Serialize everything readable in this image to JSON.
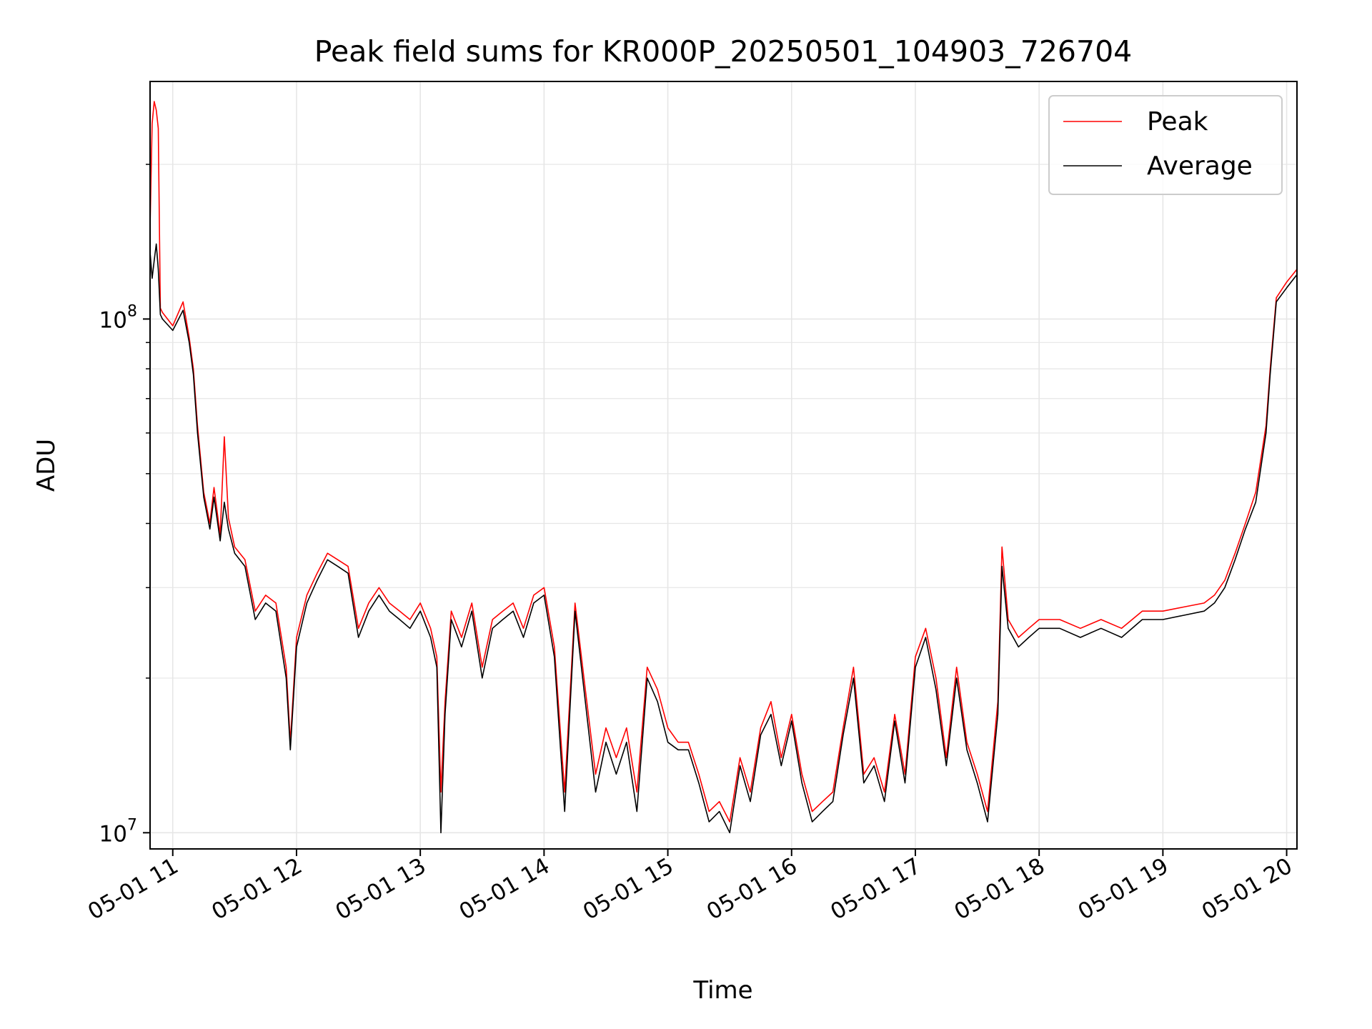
{
  "chart_data": {
    "type": "line",
    "title": "Peak field sums for KR000P_20250501_104903_726704",
    "xlabel": "Time",
    "ylabel": "ADU",
    "x_range": [
      "05-01 10:49",
      "05-01 20:05"
    ],
    "x_ticks": [
      "05-01 11",
      "05-01 12",
      "05-01 13",
      "05-01 14",
      "05-01 15",
      "05-01 16",
      "05-01 17",
      "05-01 18",
      "05-01 19",
      "05-01 20"
    ],
    "y_scale": "log",
    "ylim": [
      9300000,
      290000000
    ],
    "y_major_ticks": [
      {
        "value": 10000000,
        "mantissa": "10",
        "exponent": "7"
      },
      {
        "value": 100000000,
        "mantissa": "10",
        "exponent": "8"
      }
    ],
    "grid": true,
    "legend_position": "top-right",
    "colors": {
      "peak": "#ff0000",
      "average": "#000000"
    },
    "series": [
      {
        "name": "Peak",
        "color": "#ff0000",
        "x": [
          "05-01 10:49",
          "05-01 10:50",
          "05-01 10:51",
          "05-01 10:52",
          "05-01 10:53",
          "05-01 10:54",
          "05-01 10:55",
          "05-01 11:00",
          "05-01 11:05",
          "05-01 11:08",
          "05-01 11:10",
          "05-01 11:12",
          "05-01 11:15",
          "05-01 11:18",
          "05-01 11:20",
          "05-01 11:23",
          "05-01 11:25",
          "05-01 11:27",
          "05-01 11:30",
          "05-01 11:35",
          "05-01 11:40",
          "05-01 11:45",
          "05-01 11:50",
          "05-01 11:55",
          "05-01 11:57",
          "05-01 12:00",
          "05-01 12:05",
          "05-01 12:10",
          "05-01 12:15",
          "05-01 12:20",
          "05-01 12:25",
          "05-01 12:30",
          "05-01 12:35",
          "05-01 12:40",
          "05-01 12:45",
          "05-01 12:50",
          "05-01 12:55",
          "05-01 13:00",
          "05-01 13:05",
          "05-01 13:08",
          "05-01 13:10",
          "05-01 13:12",
          "05-01 13:15",
          "05-01 13:20",
          "05-01 13:25",
          "05-01 13:30",
          "05-01 13:35",
          "05-01 13:40",
          "05-01 13:45",
          "05-01 13:50",
          "05-01 13:55",
          "05-01 14:00",
          "05-01 14:05",
          "05-01 14:10",
          "05-01 14:15",
          "05-01 14:20",
          "05-01 14:25",
          "05-01 14:30",
          "05-01 14:35",
          "05-01 14:40",
          "05-01 14:45",
          "05-01 14:50",
          "05-01 14:55",
          "05-01 15:00",
          "05-01 15:05",
          "05-01 15:10",
          "05-01 15:15",
          "05-01 15:20",
          "05-01 15:25",
          "05-01 15:30",
          "05-01 15:35",
          "05-01 15:40",
          "05-01 15:45",
          "05-01 15:50",
          "05-01 15:55",
          "05-01 16:00",
          "05-01 16:05",
          "05-01 16:10",
          "05-01 16:15",
          "05-01 16:20",
          "05-01 16:25",
          "05-01 16:30",
          "05-01 16:35",
          "05-01 16:40",
          "05-01 16:45",
          "05-01 16:50",
          "05-01 16:55",
          "05-01 17:00",
          "05-01 17:05",
          "05-01 17:10",
          "05-01 17:15",
          "05-01 17:20",
          "05-01 17:25",
          "05-01 17:30",
          "05-01 17:35",
          "05-01 17:40",
          "05-01 17:42",
          "05-01 17:45",
          "05-01 17:50",
          "05-01 17:55",
          "05-01 18:00",
          "05-01 18:10",
          "05-01 18:20",
          "05-01 18:30",
          "05-01 18:40",
          "05-01 18:50",
          "05-01 19:00",
          "05-01 19:10",
          "05-01 19:20",
          "05-01 19:25",
          "05-01 19:30",
          "05-01 19:35",
          "05-01 19:40",
          "05-01 19:45",
          "05-01 19:48",
          "05-01 19:50",
          "05-01 19:52",
          "05-01 19:55",
          "05-01 20:00",
          "05-01 20:05"
        ],
        "values": [
          150000000,
          240000000,
          265000000,
          255000000,
          235000000,
          105000000,
          103000000,
          97000000,
          108000000,
          92000000,
          80000000,
          62000000,
          46000000,
          40000000,
          47000000,
          38000000,
          59000000,
          41000000,
          36000000,
          34000000,
          27000000,
          29000000,
          28000000,
          21000000,
          15000000,
          24000000,
          29000000,
          32000000,
          35000000,
          34000000,
          33000000,
          25000000,
          28000000,
          30000000,
          28000000,
          27000000,
          26000000,
          28000000,
          25000000,
          22000000,
          12000000,
          18000000,
          27000000,
          24000000,
          28000000,
          21000000,
          26000000,
          27000000,
          28000000,
          25000000,
          29000000,
          30000000,
          23000000,
          12000000,
          28000000,
          19000000,
          13000000,
          16000000,
          14000000,
          16000000,
          12000000,
          21000000,
          19000000,
          16000000,
          15000000,
          15000000,
          13000000,
          11000000,
          11500000,
          10500000,
          14000000,
          12000000,
          16000000,
          18000000,
          14000000,
          17000000,
          13000000,
          11000000,
          11500000,
          12000000,
          16000000,
          21000000,
          13000000,
          14000000,
          12000000,
          17000000,
          13000000,
          22000000,
          25000000,
          20000000,
          14000000,
          21000000,
          15000000,
          13000000,
          11000000,
          18000000,
          36000000,
          26000000,
          24000000,
          25000000,
          26000000,
          26000000,
          25000000,
          26000000,
          25000000,
          27000000,
          27000000,
          27500000,
          28000000,
          29000000,
          31000000,
          35000000,
          40000000,
          46000000,
          55000000,
          62000000,
          80000000,
          110000000,
          118000000,
          125000000
        ]
      },
      {
        "name": "Average",
        "color": "#000000",
        "x": [
          "05-01 10:49",
          "05-01 10:50",
          "05-01 10:51",
          "05-01 10:52",
          "05-01 10:53",
          "05-01 10:54",
          "05-01 10:55",
          "05-01 11:00",
          "05-01 11:05",
          "05-01 11:08",
          "05-01 11:10",
          "05-01 11:12",
          "05-01 11:15",
          "05-01 11:18",
          "05-01 11:20",
          "05-01 11:23",
          "05-01 11:25",
          "05-01 11:27",
          "05-01 11:30",
          "05-01 11:35",
          "05-01 11:40",
          "05-01 11:45",
          "05-01 11:50",
          "05-01 11:55",
          "05-01 11:57",
          "05-01 12:00",
          "05-01 12:05",
          "05-01 12:10",
          "05-01 12:15",
          "05-01 12:20",
          "05-01 12:25",
          "05-01 12:30",
          "05-01 12:35",
          "05-01 12:40",
          "05-01 12:45",
          "05-01 12:50",
          "05-01 12:55",
          "05-01 13:00",
          "05-01 13:05",
          "05-01 13:08",
          "05-01 13:10",
          "05-01 13:12",
          "05-01 13:15",
          "05-01 13:20",
          "05-01 13:25",
          "05-01 13:30",
          "05-01 13:35",
          "05-01 13:40",
          "05-01 13:45",
          "05-01 13:50",
          "05-01 13:55",
          "05-01 14:00",
          "05-01 14:05",
          "05-01 14:10",
          "05-01 14:15",
          "05-01 14:20",
          "05-01 14:25",
          "05-01 14:30",
          "05-01 14:35",
          "05-01 14:40",
          "05-01 14:45",
          "05-01 14:50",
          "05-01 14:55",
          "05-01 15:00",
          "05-01 15:05",
          "05-01 15:10",
          "05-01 15:15",
          "05-01 15:20",
          "05-01 15:25",
          "05-01 15:30",
          "05-01 15:35",
          "05-01 15:40",
          "05-01 15:45",
          "05-01 15:50",
          "05-01 15:55",
          "05-01 16:00",
          "05-01 16:05",
          "05-01 16:10",
          "05-01 16:15",
          "05-01 16:20",
          "05-01 16:25",
          "05-01 16:30",
          "05-01 16:35",
          "05-01 16:40",
          "05-01 16:45",
          "05-01 16:50",
          "05-01 16:55",
          "05-01 17:00",
          "05-01 17:05",
          "05-01 17:10",
          "05-01 17:15",
          "05-01 17:20",
          "05-01 17:25",
          "05-01 17:30",
          "05-01 17:35",
          "05-01 17:40",
          "05-01 17:42",
          "05-01 17:45",
          "05-01 17:50",
          "05-01 17:55",
          "05-01 18:00",
          "05-01 18:10",
          "05-01 18:20",
          "05-01 18:30",
          "05-01 18:40",
          "05-01 18:50",
          "05-01 19:00",
          "05-01 19:10",
          "05-01 19:20",
          "05-01 19:25",
          "05-01 19:30",
          "05-01 19:35",
          "05-01 19:40",
          "05-01 19:45",
          "05-01 19:48",
          "05-01 19:50",
          "05-01 19:52",
          "05-01 19:55",
          "05-01 20:00",
          "05-01 20:05"
        ],
        "values": [
          135000000,
          120000000,
          130000000,
          140000000,
          125000000,
          102000000,
          100000000,
          95000000,
          104000000,
          90000000,
          78000000,
          60000000,
          45000000,
          39000000,
          45000000,
          37000000,
          44000000,
          39000000,
          35000000,
          33000000,
          26000000,
          28000000,
          27000000,
          20000000,
          14500000,
          23000000,
          28000000,
          31000000,
          34000000,
          33000000,
          32000000,
          24000000,
          27000000,
          29000000,
          27000000,
          26000000,
          25000000,
          27000000,
          24000000,
          21000000,
          10000000,
          17000000,
          26000000,
          23000000,
          27000000,
          20000000,
          25000000,
          26000000,
          27000000,
          24000000,
          28000000,
          29000000,
          22000000,
          11000000,
          27000000,
          18000000,
          12000000,
          15000000,
          13000000,
          15000000,
          11000000,
          20000000,
          18000000,
          15000000,
          14500000,
          14500000,
          12500000,
          10500000,
          11000000,
          10000000,
          13500000,
          11500000,
          15500000,
          17000000,
          13500000,
          16500000,
          12500000,
          10500000,
          11000000,
          11500000,
          15500000,
          20000000,
          12500000,
          13500000,
          11500000,
          16500000,
          12500000,
          21000000,
          24000000,
          19000000,
          13500000,
          20000000,
          14500000,
          12500000,
          10500000,
          17000000,
          33000000,
          25000000,
          23000000,
          24000000,
          25000000,
          25000000,
          24000000,
          25000000,
          24000000,
          26000000,
          26000000,
          26500000,
          27000000,
          28000000,
          30000000,
          34000000,
          39000000,
          44000000,
          53000000,
          60000000,
          78000000,
          108000000,
          115000000,
          122000000
        ]
      }
    ]
  }
}
